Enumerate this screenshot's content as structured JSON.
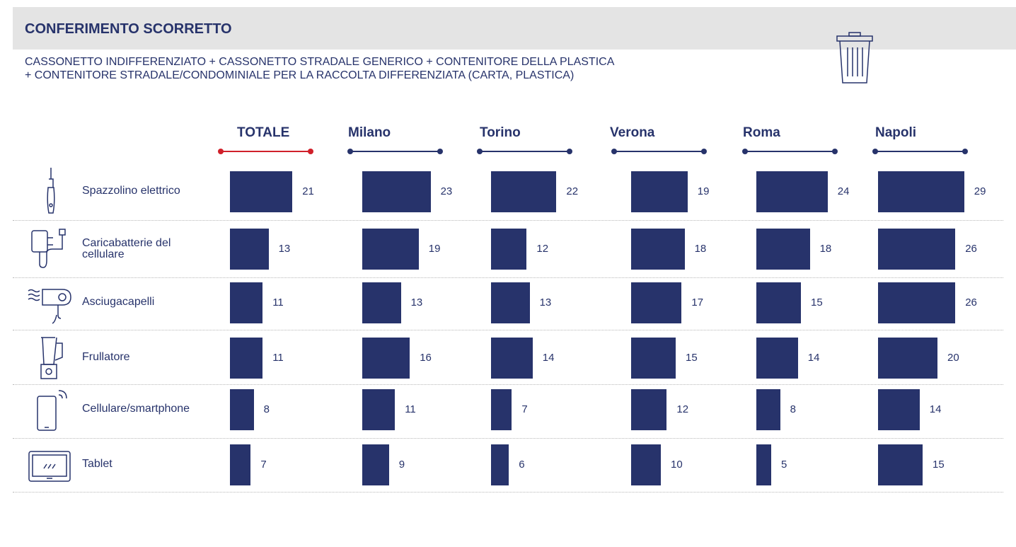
{
  "chart_data": {
    "type": "bar",
    "title": "CONFERIMENTO SCORRETTO",
    "subtitle": [
      "CASSONETTO INDIFFERENZIATO + CASSONETTO STRADALE GENERICO + CONTENITORE DELLA PLASTICA",
      "+ CONTENITORE STRADALE/CONDOMINIALE PER LA RACCOLTA DIFFERENZIATA (CARTA, PLASTICA)"
    ],
    "categories": [
      "Spazzolino elettrico",
      "Caricabatterie del cellulare",
      "Asciugacapelli",
      "Frullatore",
      "Cellulare/smartphone",
      "Tablet"
    ],
    "bar_color": "#27336b",
    "series": [
      {
        "name": "TOTALE",
        "color": "#d0202a",
        "values": [
          21,
          13,
          11,
          11,
          8,
          7
        ]
      },
      {
        "name": "Milano",
        "color": "#27336b",
        "values": [
          23,
          19,
          13,
          16,
          11,
          9
        ]
      },
      {
        "name": "Torino",
        "color": "#27336b",
        "values": [
          22,
          12,
          13,
          14,
          7,
          6
        ]
      },
      {
        "name": "Verona",
        "color": "#27336b",
        "values": [
          19,
          18,
          17,
          15,
          12,
          10
        ]
      },
      {
        "name": "Roma",
        "color": "#27336b",
        "values": [
          24,
          18,
          15,
          14,
          8,
          5
        ]
      },
      {
        "name": "Napoli",
        "color": "#27336b",
        "values": [
          29,
          26,
          26,
          20,
          14,
          15
        ]
      }
    ]
  }
}
